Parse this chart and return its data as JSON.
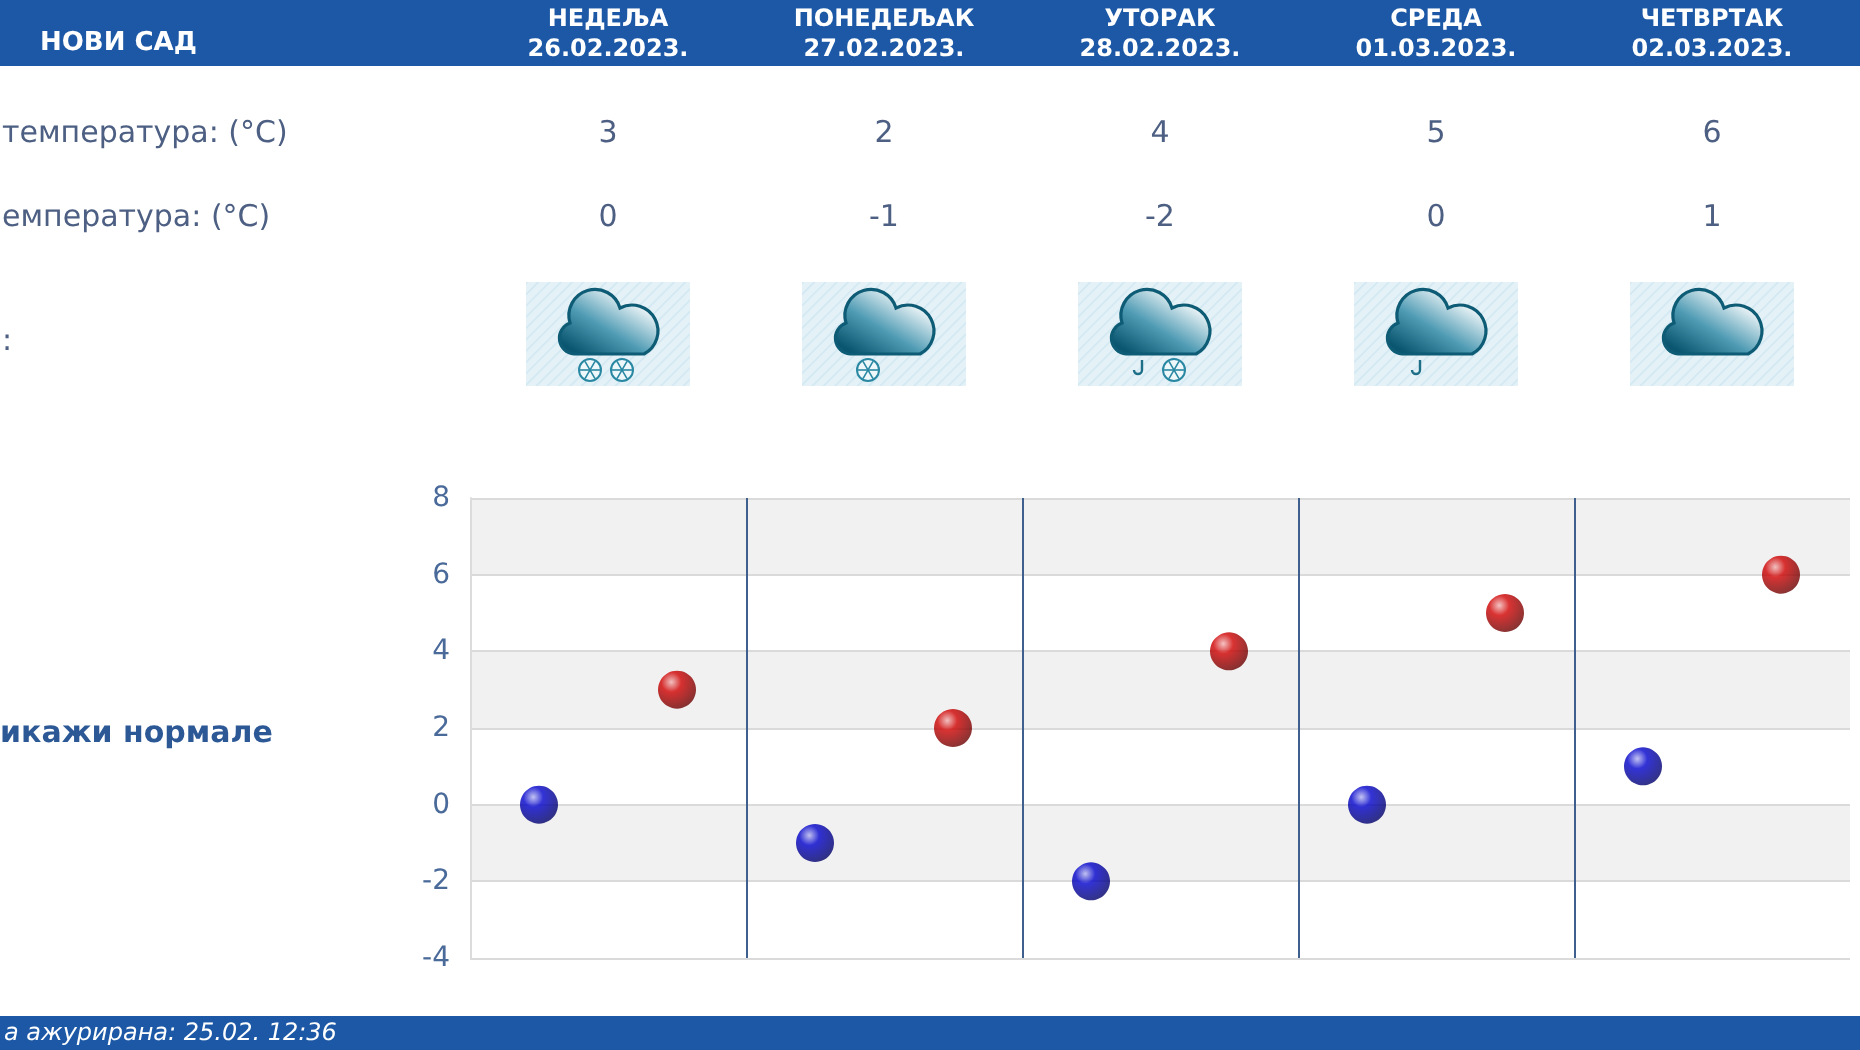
{
  "chart_data": {
    "type": "scatter",
    "title": "НОВИ САД",
    "categories": [
      null,
      null,
      null,
      null,
      null
    ],
    "tick_labels": "y",
    "series": [
      {
        "color": "#0000cc",
        "values": [
          0,
          -1,
          -2,
          0,
          1
        ]
      },
      {
        "color": "#d00000",
        "values": [
          3,
          2,
          4,
          5,
          6
        ]
      }
    ],
    "ylim": [
      -4,
      8
    ],
    "yticks": [
      -4,
      -2,
      0,
      2,
      4,
      6,
      8
    ],
    "grid": true,
    "marker": "circle",
    "data_labels": true,
    "annotations": [
      "НЕДЕЉА\n26.02.2023.",
      "ПОНЕДЕЉАК\n27.02.2023.",
      "УТОРАК\n28.02.2023.",
      "СРЕДА\n01.03.2023.",
      "ЧЕТВРТАК\n02.03.2023.",
      "температура: (°C)",
      "емпература: (°C)",
      ":",
      "икажи нормале",
      "а ажурирана: 25.02. 12:36"
    ]
  }
}
